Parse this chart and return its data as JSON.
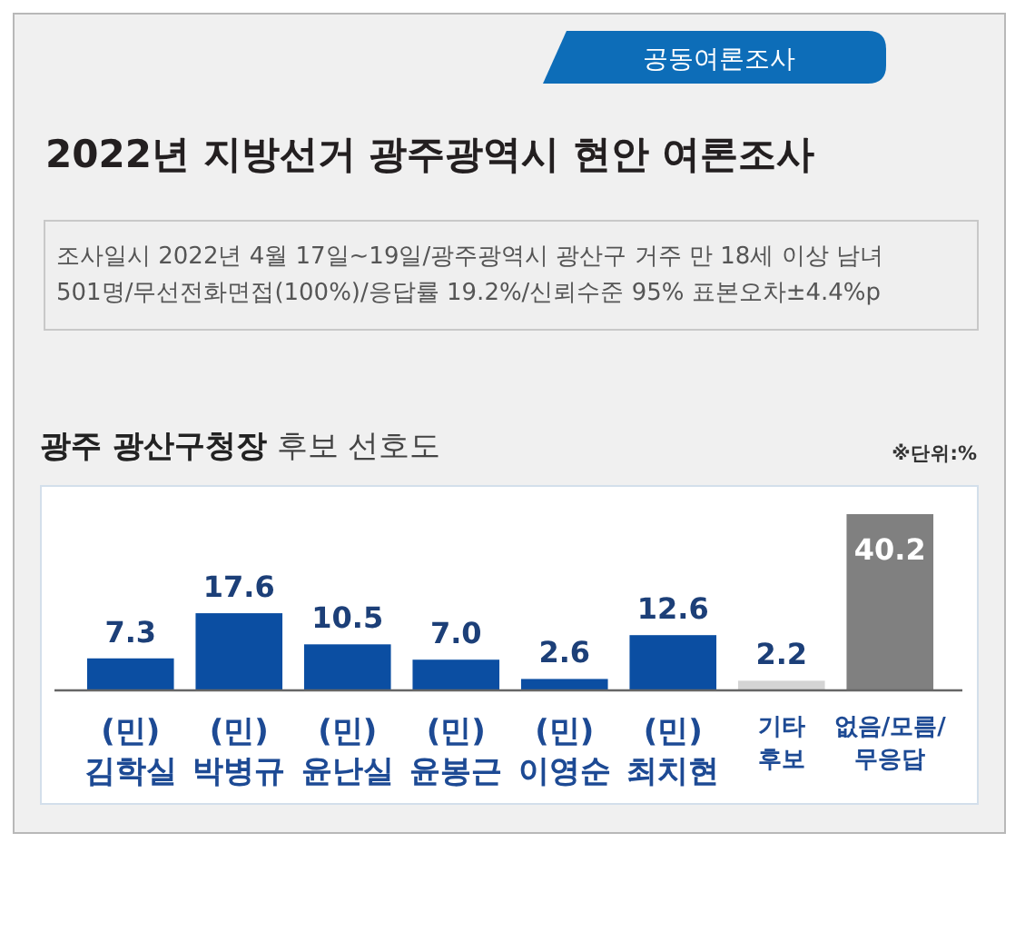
{
  "chart_data": {
    "type": "bar",
    "title": "2022년 지방선거 광주광역시 현안 여론조사",
    "subtitle": "광주 광산구청장 후보 선호도",
    "annotations": [
      "공동여론조사",
      "조사일시 2022년 4월 17일~19일/광주광역시 광산구 거주 만 18세 이상 남녀 501명/무선전화면접(100%)/응답률 19.2%/신뢰수준 95% 표본오차±4.4%p",
      "※단위:%"
    ],
    "categories": [
      "(민) 김학실",
      "(민) 박병규",
      "(민) 윤난실",
      "(민) 윤봉근",
      "(민) 이영순",
      "(민) 최치현",
      "기타 후보",
      "없음/모름/무응답"
    ],
    "values": [
      7.3,
      17.6,
      10.5,
      7.0,
      2.6,
      12.6,
      2.2,
      40.2
    ],
    "value_labels": [
      "7.3",
      "17.6",
      "10.5",
      "7.0",
      "2.6",
      "12.6",
      "2.2",
      "40.2"
    ],
    "colors": [
      "#0b4ea2",
      "#0b4ea2",
      "#0b4ea2",
      "#0b4ea2",
      "#0b4ea2",
      "#0b4ea2",
      "#d4d4d4",
      "#808080"
    ],
    "tick_labels": "x"
  }
}
